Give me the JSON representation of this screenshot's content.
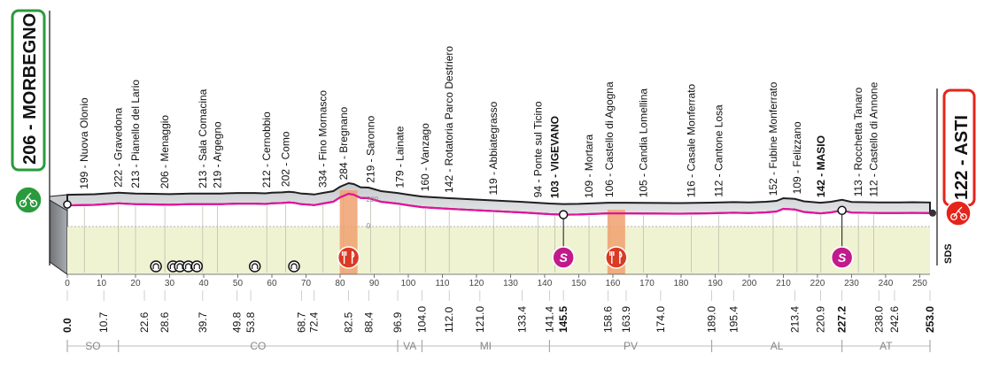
{
  "chart_data": {
    "type": "area",
    "title": "",
    "xlabel": "",
    "ylabel": "",
    "xlim": [
      0,
      253
    ],
    "ylim": [
      0,
      420
    ],
    "x_ticks": [
      0,
      10,
      20,
      30,
      40,
      50,
      60,
      70,
      80,
      90,
      100,
      110,
      120,
      130,
      140,
      150,
      160,
      170,
      180,
      190,
      200,
      210,
      220,
      230,
      240,
      250
    ],
    "elevation_marks": [
      "200",
      "0"
    ],
    "start": {
      "label": "206 - MORBEGNO",
      "km": "0.0"
    },
    "finish": {
      "label": "122 - ASTI",
      "km": "253.0"
    },
    "profile": {
      "x": [
        0,
        8,
        15,
        20,
        25,
        30,
        36,
        40,
        45,
        50,
        55,
        58,
        60,
        63,
        65,
        66.5,
        68.7,
        70,
        72.4,
        75,
        78,
        80,
        82.5,
        84,
        86,
        88.4,
        92,
        96.9,
        100,
        104,
        112,
        121,
        133.4,
        141.4,
        145.5,
        150,
        158.6,
        163.9,
        174,
        180,
        189,
        195.4,
        200,
        205,
        208,
        210,
        213.4,
        216,
        220.9,
        224,
        227.2,
        230,
        238,
        242.6,
        248,
        253
      ],
      "y": [
        199,
        205,
        222,
        213,
        210,
        206,
        213,
        213,
        213,
        219,
        219,
        215,
        222,
        226,
        232,
        228,
        212,
        210,
        202,
        220,
        240,
        290,
        330,
        320,
        284,
        280,
        240,
        219,
        200,
        179,
        160,
        142,
        119,
        100,
        94,
        96,
        109,
        109,
        106,
        105,
        110,
        116,
        112,
        120,
        130,
        160,
        152,
        125,
        109,
        120,
        142,
        118,
        113,
        112,
        115,
        112
      ]
    },
    "places": [
      {
        "label": "199 - Nuova Olonio",
        "km": 5
      },
      {
        "label": "222 - Gravedona",
        "km": 15
      },
      {
        "label": "213 - Pianello del Lario",
        "km": 20
      },
      {
        "label": "206 - Menaggio",
        "km": 28.6
      },
      {
        "label": "213 - Sala Comacina",
        "km": 39.7
      },
      {
        "label": "219 - Argegno",
        "km": 44
      },
      {
        "label": "212 - Cernobbio",
        "km": 58.5
      },
      {
        "label": "202 - Como",
        "km": 64
      },
      {
        "label": "334 - Fino Mornasco",
        "km": 75
      },
      {
        "label": "284 - Bregnano",
        "km": 81
      },
      {
        "label": "219 - Saronno",
        "km": 89
      },
      {
        "label": "179 - Lainate",
        "km": 97.5
      },
      {
        "label": "160 - Vanzago",
        "km": 105
      },
      {
        "label": "142 - Rotatoria Parco Destriero",
        "km": 112
      },
      {
        "label": "119 - Abbiategrasso",
        "km": 125
      },
      {
        "label": "94 - Ponte sul Ticino",
        "km": 138
      },
      {
        "label": "103 - VIGEVANO",
        "km": 143,
        "bold": true
      },
      {
        "label": "109 - Mortara",
        "km": 153
      },
      {
        "label": "106 - Castello di Agogna",
        "km": 159
      },
      {
        "label": "105 - Candia Lomellina",
        "km": 169
      },
      {
        "label": "116 - Casale Monferrato",
        "km": 183
      },
      {
        "label": "112 - Cantone Losa",
        "km": 191
      },
      {
        "label": "152 - Fubine Monferrato",
        "km": 207
      },
      {
        "label": "109 - Felizzano",
        "km": 214
      },
      {
        "label": "142 - MASIO",
        "km": 221,
        "bold": true
      },
      {
        "label": "113 - Rocchetta Tanaro",
        "km": 232
      },
      {
        "label": "112 - Castello di Annone",
        "km": 236.5
      }
    ],
    "km_labels": [
      "0.0",
      "10.7",
      "22.6",
      "28.6",
      "39.7",
      "49.8",
      "53.8",
      "68.7",
      "72.4",
      "82.5",
      "88.4",
      "96.9",
      "104.0",
      "112.0",
      "121.0",
      "133.4",
      "141.4",
      "145.5",
      "158.6",
      "163.9",
      "174.0",
      "189.0",
      "195.4",
      "213.4",
      "220.9",
      "227.2",
      "238.0",
      "242.6",
      "253.0"
    ],
    "km_labels_bold": [
      "0.0",
      "145.5",
      "227.2",
      "253.0"
    ],
    "regions": [
      {
        "label": "SO",
        "from": 0,
        "to": 15
      },
      {
        "label": "CO",
        "from": 15,
        "to": 96.9
      },
      {
        "label": "VA",
        "from": 96.9,
        "to": 104
      },
      {
        "label": "MI",
        "from": 104,
        "to": 141.4
      },
      {
        "label": "PV",
        "from": 141.4,
        "to": 189
      },
      {
        "label": "AL",
        "from": 189,
        "to": 227.2
      },
      {
        "label": "AT",
        "from": 227.2,
        "to": 253
      }
    ],
    "sprints": [
      {
        "km": 145.5,
        "label": "S"
      },
      {
        "km": 227.2,
        "label": "S"
      }
    ],
    "feed_zones": [
      {
        "km": 82.5
      },
      {
        "km": 161
      }
    ],
    "tunnels": [
      26,
      31,
      33,
      35.5,
      38,
      55,
      66.5
    ],
    "sds_label": "SDS"
  },
  "colors": {
    "profile_line": "#e0149b",
    "ground": "#f0f3d2",
    "sky_band": "#d6d8dc",
    "wall": "#8a8d91",
    "start_green": "#2a9a3c",
    "finish_red": "#e5241b",
    "sprint_purple": "#c21a8c",
    "feed_orange": "#f0a070",
    "feed_red": "#d93b25"
  }
}
